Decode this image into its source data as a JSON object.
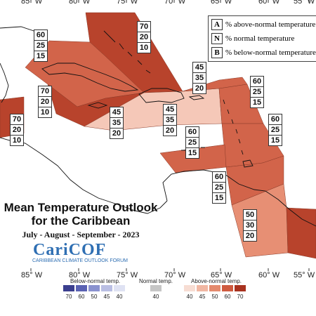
{
  "longitude_labels": {
    "top": [
      "85° W",
      "80° W",
      "75° W",
      "70° W",
      "65° W",
      "60° W",
      "55° W"
    ],
    "bottom": [
      "85° W",
      "80° W",
      "75° W",
      "70° W",
      "65° W",
      "60° W",
      "55° W"
    ]
  },
  "key": {
    "rows": [
      {
        "letter": "A",
        "text": "% above-normal temperature"
      },
      {
        "letter": "N",
        "text": "% normal temperature"
      },
      {
        "letter": "B",
        "text": "% below-normal temperature"
      }
    ]
  },
  "forecast_boxes": [
    {
      "id": "bahamas",
      "above": "70",
      "normal": "20",
      "below": "10"
    },
    {
      "id": "cuba",
      "above": "60",
      "normal": "25",
      "below": "15"
    },
    {
      "id": "cayman",
      "above": "70",
      "normal": "20",
      "below": "10"
    },
    {
      "id": "belize",
      "above": "70",
      "normal": "20",
      "below": "10"
    },
    {
      "id": "jamaica",
      "above": "45",
      "normal": "35",
      "below": "20"
    },
    {
      "id": "hispaniola-north",
      "above": "45",
      "normal": "35",
      "below": "20"
    },
    {
      "id": "hispaniola-south",
      "above": "45",
      "normal": "35",
      "below": "20"
    },
    {
      "id": "leeward-islands",
      "above": "60",
      "normal": "25",
      "below": "15"
    },
    {
      "id": "abc-islands",
      "above": "60",
      "normal": "25",
      "below": "15"
    },
    {
      "id": "windward-islands",
      "above": "60",
      "normal": "25",
      "below": "15"
    },
    {
      "id": "trinidad",
      "above": "60",
      "normal": "25",
      "below": "15"
    },
    {
      "id": "guianas",
      "above": "50",
      "normal": "30",
      "below": "20"
    }
  ],
  "title": {
    "line1": "Mean Temperature Outlook",
    "line2": "for the Caribbean",
    "dates": "July - August - September - 2023"
  },
  "logo": {
    "name": "CariCOF",
    "subtitle": "CARIBBEAN CLIMATE OUTLOOK FORUM"
  },
  "legend": {
    "below_label": "Below-normal temp.",
    "normal_label": "Normal temp.",
    "above_label": "Above-normal temp.",
    "below_values": [
      "70",
      "60",
      "50",
      "45",
      "40"
    ],
    "normal_values": [
      "40"
    ],
    "above_values": [
      "40",
      "45",
      "50",
      "60",
      "70"
    ],
    "below_colors": [
      "#3b3f8f",
      "#5a62b3",
      "#8a92cf",
      "#b9bee3",
      "#dfe2f3"
    ],
    "normal_color": "#c6c6c6",
    "above_colors": [
      "#f7ddd3",
      "#f1b7a3",
      "#e48a6d",
      "#cf5a3f",
      "#a8321f"
    ]
  },
  "colors": {
    "cat70": "#b8432c",
    "cat60": "#d2644a",
    "cat50": "#e78f74",
    "cat45": "#f5c8b8",
    "land_line": "#111111"
  }
}
